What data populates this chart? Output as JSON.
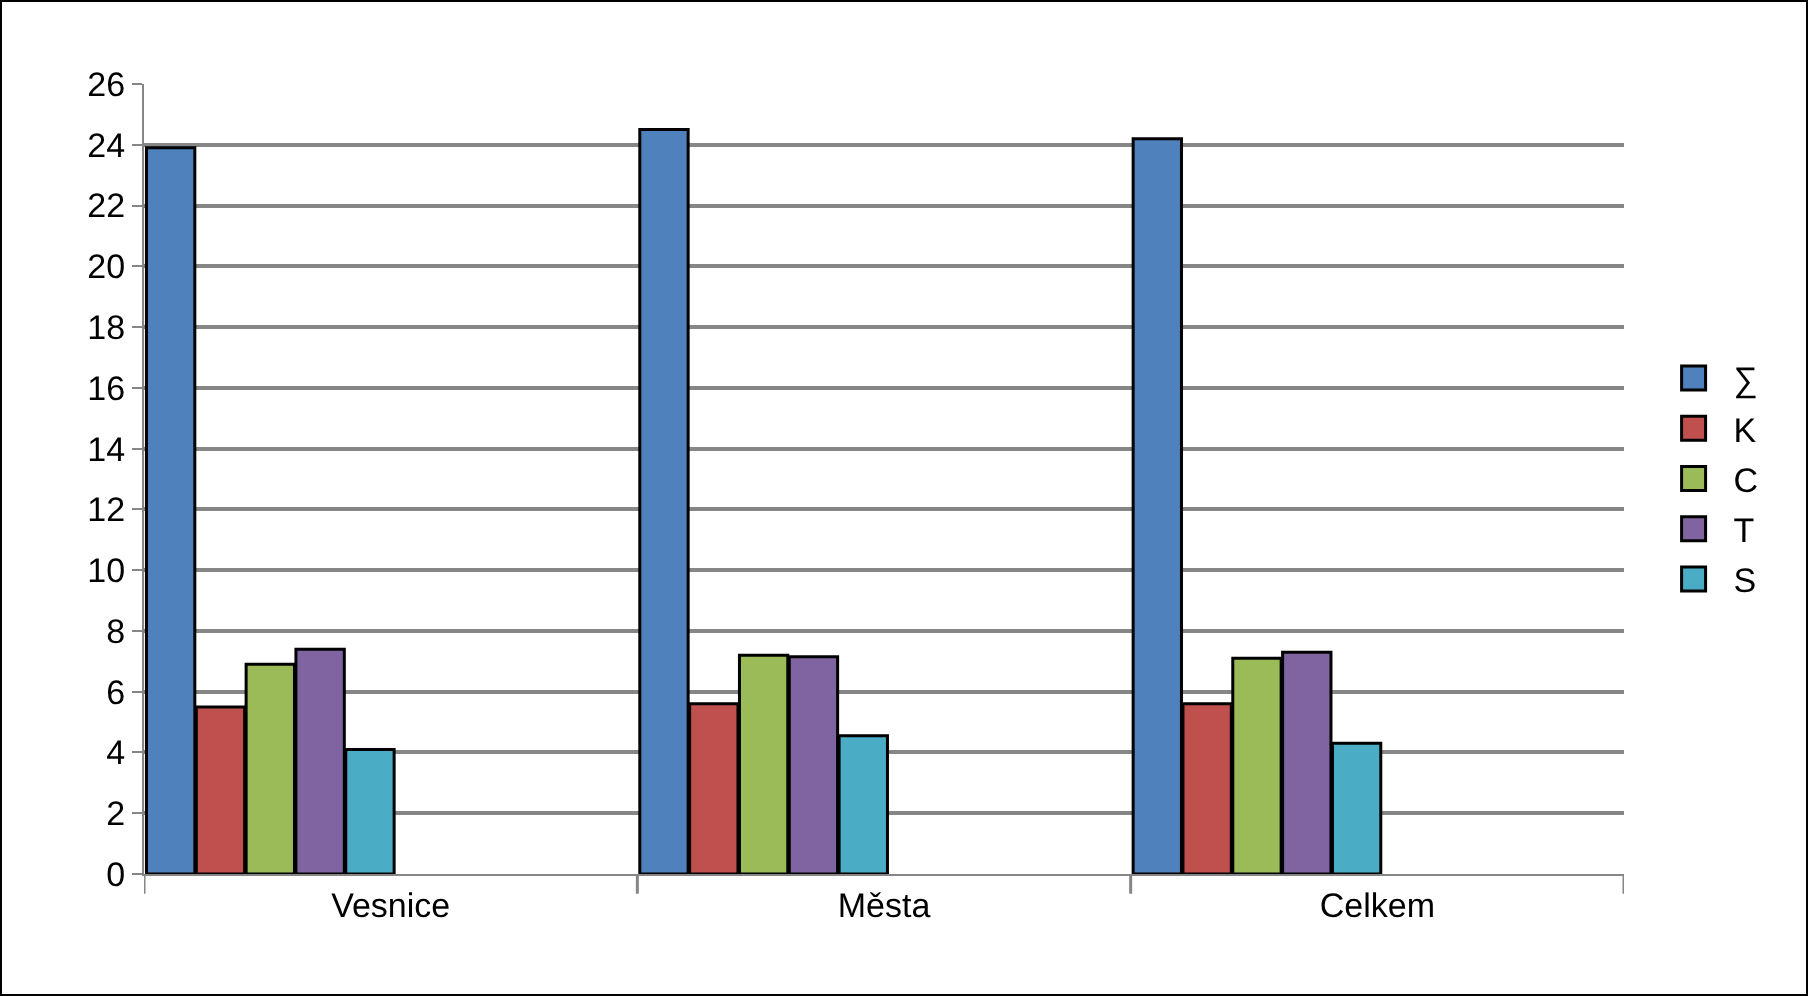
{
  "chart_data": {
    "type": "bar",
    "categories": [
      "Vesnice",
      "Města",
      "Celkem"
    ],
    "series": [
      {
        "name": "∑",
        "color": "#4f81bd",
        "values": [
          23.9,
          24.5,
          24.2
        ]
      },
      {
        "name": "K",
        "color": "#c0504d",
        "values": [
          5.5,
          5.6,
          5.6
        ]
      },
      {
        "name": "C",
        "color": "#9bbb59",
        "values": [
          6.9,
          7.2,
          7.1
        ]
      },
      {
        "name": "T",
        "color": "#8064a2",
        "values": [
          7.4,
          7.15,
          7.3
        ]
      },
      {
        "name": "S",
        "color": "#4bacc6",
        "values": [
          4.1,
          4.55,
          4.3
        ]
      }
    ],
    "ylim": [
      0,
      26
    ],
    "yticks": [
      0,
      2,
      4,
      6,
      8,
      10,
      12,
      14,
      16,
      18,
      20,
      22,
      24,
      26
    ],
    "grid": "y",
    "legend": "right"
  }
}
